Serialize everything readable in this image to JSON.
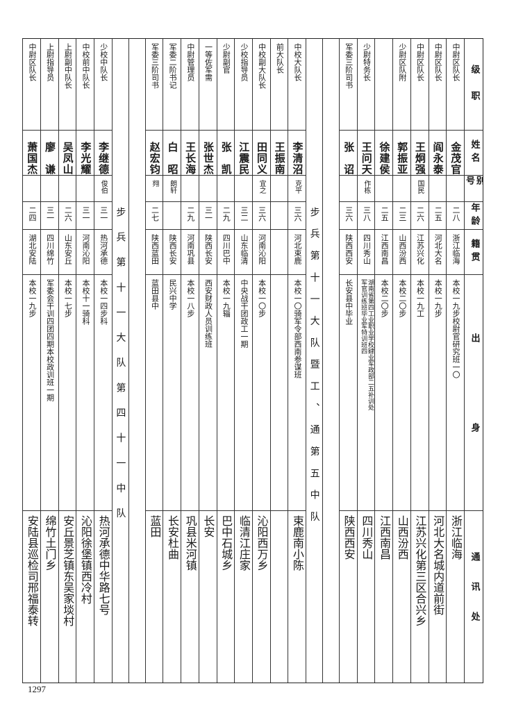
{
  "header_labels": {
    "rank": "级　职",
    "name": "姓名",
    "alias": "别号",
    "age": "年龄",
    "native": "籍贯",
    "origin": "出　　身",
    "address": "通讯处"
  },
  "groups": [
    {
      "title": "",
      "rows": [
        {
          "rank": "中尉区队长",
          "name": "金茂官",
          "alias": "",
          "age": "二八",
          "native": "浙江临海",
          "origin": "本校一九步校尉官研究班一〇",
          "address": "浙江临海"
        },
        {
          "rank": "中尉区队长",
          "name": "阎永泰",
          "alias": "",
          "age": "二五",
          "native": "河北大名",
          "origin": "本校一九步",
          "address": "河北大名城内道前街"
        },
        {
          "rank": "中尉区队长",
          "name": "王炯强",
          "alias": "国民",
          "age": "二六",
          "native": "江苏兴化",
          "origin": "本校一九工",
          "address": "江苏兴化第三区合兴乡"
        },
        {
          "rank": "少尉区队附",
          "name": "郭振亚",
          "alias": "",
          "age": "二三",
          "native": "山西汾西",
          "origin": "本校二〇步",
          "address": "山西汾西"
        },
        {
          "rank": "",
          "name": "徐建侯",
          "alias": "",
          "age": "二五",
          "native": "江西南昌",
          "origin": "本校二〇步",
          "address": "江西南昌"
        },
        {
          "rank": "少尉特务长",
          "name": "王问天",
          "alias": "作栋",
          "age": "三八",
          "native": "四川秀山",
          "origin": "湖南省第四工业职业学校肄业军政部二五补训处\n军官训练班毕业军特训班四",
          "address": "四川秀山"
        },
        {
          "rank": "军委三阶司书",
          "name": "张　诏",
          "alias": "",
          "age": "三六",
          "native": "陕西西安",
          "origin": "长安县中毕业",
          "address": "陕西西安"
        }
      ]
    },
    {
      "title": "步兵第十一大队暨工、通第五中队",
      "rows": [
        {
          "rank": "中校大队长",
          "name": "李清沼",
          "alias": "克平",
          "age": "三六",
          "native": "河北束鹿",
          "origin": "本校一〇骑军令部西南参谋班",
          "address": "束鹿南小陈"
        },
        {
          "rank": "前大队长",
          "name": "王振南",
          "alias": "",
          "age": "",
          "native": "",
          "origin": "",
          "address": ""
        },
        {
          "rank": "中校副大队长",
          "name": "田同义",
          "alias": "宜之",
          "age": "三六",
          "native": "河南沁阳",
          "origin": "本校一〇步",
          "address": "沁阳西万乡"
        },
        {
          "rank": "少校指导员",
          "name": "江震民",
          "alias": "",
          "age": "三二",
          "native": "山东临清",
          "origin": "中央战干团政工一期",
          "address": "临清江庄家"
        },
        {
          "rank": "少尉副官",
          "name": "张　凯",
          "alias": "",
          "age": "二九",
          "native": "四川巴中",
          "origin": "本校一九辎",
          "address": "巴中石城乡"
        },
        {
          "rank": "一等佐军需",
          "name": "张世杰",
          "alias": "",
          "age": "三一",
          "native": "陕西长安",
          "origin": "西安财政人员训练班",
          "address": "长安"
        },
        {
          "rank": "中尉管理员",
          "name": "王长海",
          "alias": "",
          "age": "二九",
          "native": "河南巩县",
          "origin": "本校一八步",
          "address": "巩县米河镇"
        },
        {
          "rank": "军委二阶书记",
          "name": "白　昭",
          "alias": "朗轩",
          "age": "",
          "native": "陕西长安",
          "origin": "民兴中学",
          "address": "长安杜曲"
        },
        {
          "rank": "军委三阶司书",
          "name": "赵宏钧",
          "alias": "翙",
          "age": "二七",
          "native": "陕西蓝田",
          "origin": "蓝田县中",
          "address": "蓝田"
        }
      ]
    },
    {
      "title": "步兵第十一大队第四十一中队",
      "rows": [
        {
          "rank": "少校中队长",
          "name": "李继德",
          "alias": "俊伯",
          "age": "三一",
          "native": "热河承德",
          "origin": "本校一四步科",
          "address": "热河承德中华路七号"
        },
        {
          "rank": "中校前中队长",
          "name": "李光耀",
          "alias": "",
          "age": "三一",
          "native": "河南沁阳",
          "origin": "本校十一骑科",
          "address": "沁阳徐堡镇西冷村"
        },
        {
          "rank": "上尉副中队长",
          "name": "吴凤山",
          "alias": "",
          "age": "二六",
          "native": "山东安丘",
          "origin": "本校一七步",
          "address": "安丘景芝镇东吴家埮村"
        },
        {
          "rank": "上尉指导员",
          "name": "廖　谦",
          "alias": "",
          "age": "三一",
          "native": "四川绵竹",
          "origin": "军委会干训四团四期本校政训班一期",
          "address": "绵竹土门乡"
        },
        {
          "rank": "中尉区队长",
          "name": "萧国杰",
          "alias": "",
          "age": "二四",
          "native": "湖北安陆",
          "origin": "本校一九步",
          "address": "安陆县巡检司邢福泰转"
        }
      ]
    }
  ],
  "page_number": "1297"
}
